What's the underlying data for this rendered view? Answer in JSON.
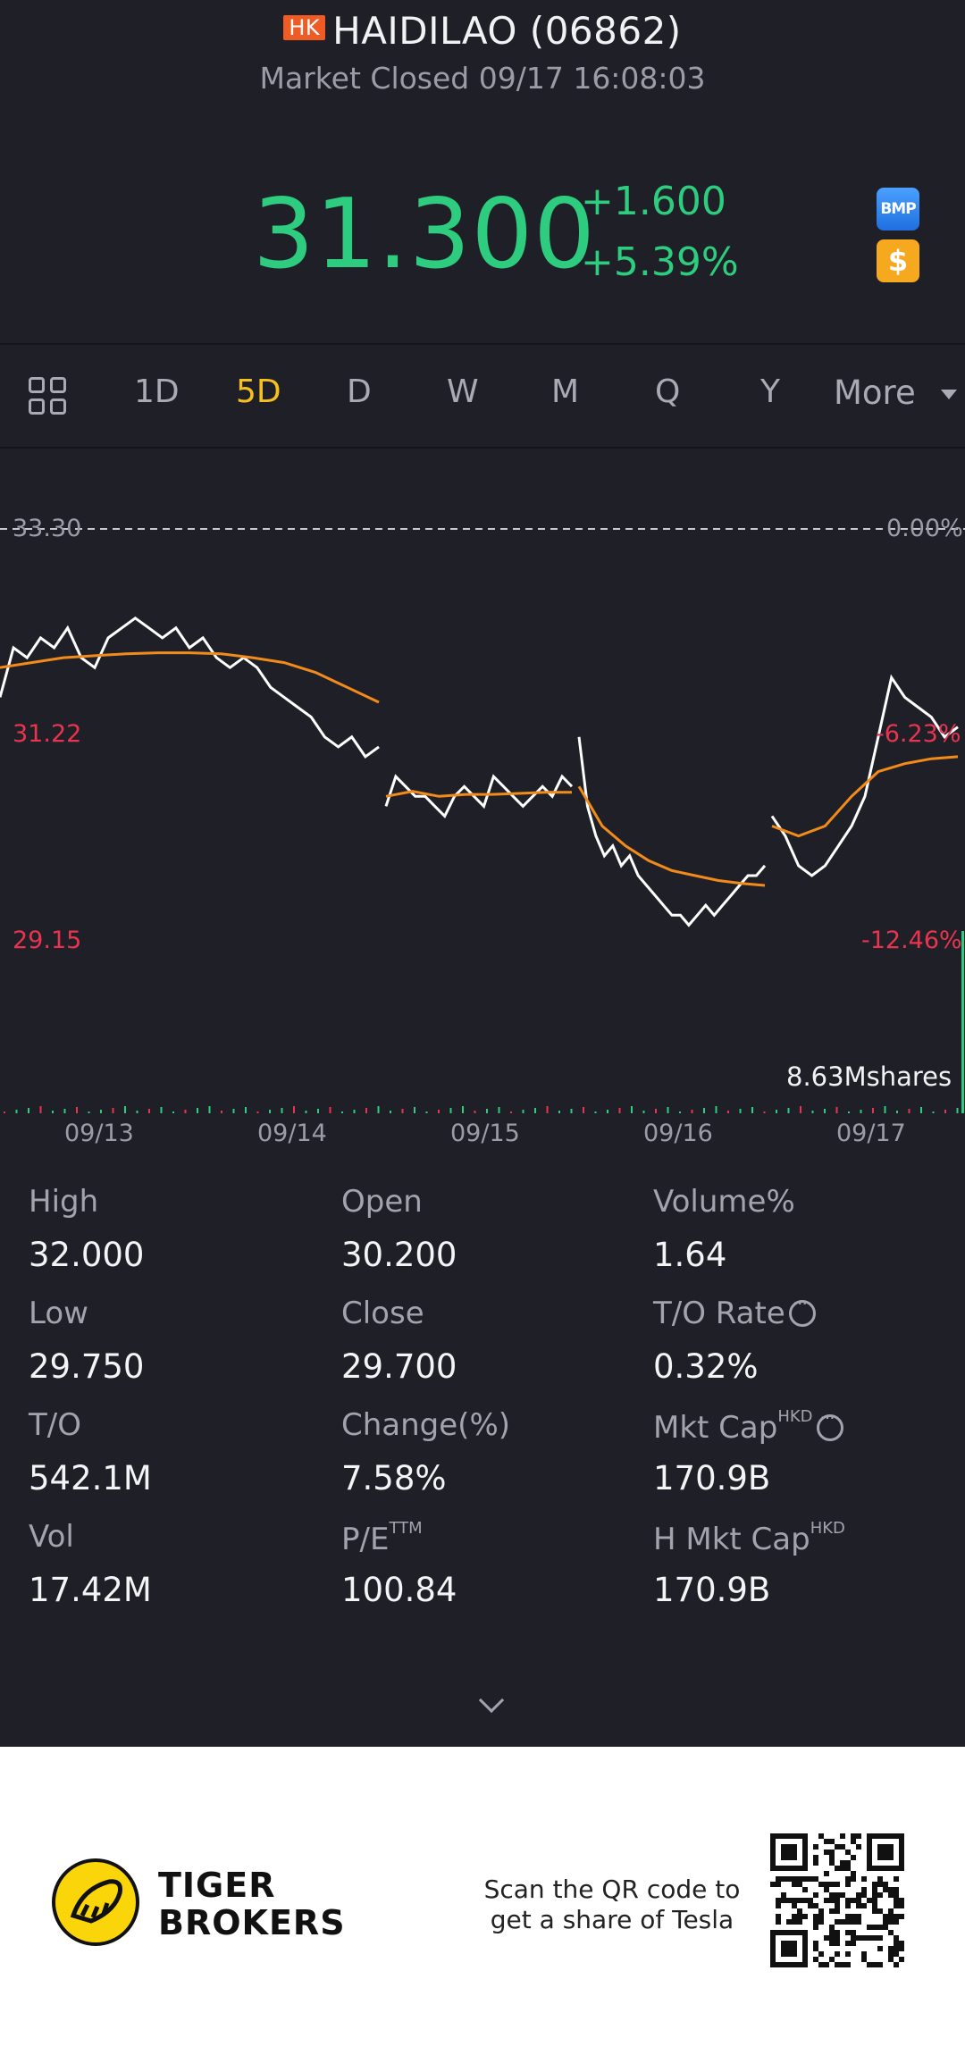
{
  "header": {
    "market_tag": "HK",
    "title": "HAIDILAO (06862)",
    "status": "Market Closed 09/17 16:08:03",
    "price": "31.300",
    "change": "+1.600",
    "change_pct": "+5.39%",
    "badge_bmp": "BMP",
    "badge_dollar": "$",
    "colors": {
      "up": "#2ecc7f",
      "down": "#e8344f",
      "accent": "#f6c01f"
    }
  },
  "tabs": {
    "items": [
      "1D",
      "5D",
      "D",
      "W",
      "M",
      "Q",
      "Y"
    ],
    "active": "5D",
    "more_label": "More",
    "grid_icon": "grid-icon",
    "caret_icon": "caret-down-icon"
  },
  "chart_data": {
    "type": "line",
    "title": "",
    "y_left_labels": [
      "33.30",
      "31.22",
      "29.15"
    ],
    "y_right_labels": [
      "0.00%",
      "-6.23%",
      "-12.46%"
    ],
    "x_labels": [
      "09/13",
      "09/14",
      "09/15",
      "09/16",
      "09/17"
    ],
    "volume_label": "8.63Mshares",
    "ylim": [
      29.15,
      33.3
    ],
    "series": [
      {
        "color": "#ffffff",
        "days": [
          [
            31.6,
            32.1,
            32.0,
            32.2,
            32.1,
            32.3,
            32.0,
            31.9,
            32.2,
            32.3,
            32.4,
            32.3,
            32.2,
            32.3,
            32.1,
            32.2,
            32.0,
            31.9,
            32.0,
            31.9,
            31.7,
            31.6,
            31.5,
            31.4,
            31.2,
            31.1,
            31.2,
            31.0,
            31.1
          ],
          [
            30.5,
            30.8,
            30.7,
            30.6,
            30.6,
            30.5,
            30.4,
            30.6,
            30.7,
            30.6,
            30.5,
            30.8,
            30.7,
            30.6,
            30.5,
            30.6,
            30.7,
            30.6,
            30.8,
            30.7
          ],
          [
            31.2,
            30.5,
            30.2,
            30.0,
            30.1,
            29.9,
            30.0,
            29.8,
            29.7,
            29.6,
            29.5,
            29.4,
            29.4,
            29.3,
            29.4,
            29.5,
            29.4,
            29.5,
            29.6,
            29.7,
            29.8,
            29.8,
            29.9
          ],
          [
            30.4,
            30.2,
            29.9,
            29.8,
            29.9,
            30.1,
            30.3,
            30.6,
            31.2,
            31.8,
            31.6,
            31.5,
            31.4,
            31.2,
            31.3
          ]
        ]
      },
      {
        "color": "#f28b1a",
        "days": [
          [
            31.9,
            31.95,
            32.0,
            32.02,
            32.04,
            32.05,
            32.05,
            32.04,
            32.0,
            31.95,
            31.85,
            31.7,
            31.55
          ],
          [
            30.6,
            30.65,
            30.6,
            30.62,
            30.62,
            30.63,
            30.64,
            30.64
          ],
          [
            30.7,
            30.3,
            30.1,
            29.95,
            29.85,
            29.8,
            29.75,
            29.72,
            29.7
          ],
          [
            30.3,
            30.2,
            30.3,
            30.6,
            30.85,
            30.93,
            30.98,
            31.0
          ]
        ]
      }
    ]
  },
  "stats": [
    {
      "label": "High",
      "value": "32.000"
    },
    {
      "label": "Open",
      "value": "30.200"
    },
    {
      "label": "Volume%",
      "value": "1.64"
    },
    {
      "label": "Low",
      "value": "29.750"
    },
    {
      "label": "Close",
      "value": "29.700"
    },
    {
      "label": "T/O Rate",
      "value": "0.32%"
    },
    {
      "label": "T/O",
      "value": "542.1M"
    },
    {
      "label": "Change(%)",
      "value": "7.58%"
    },
    {
      "label": "Mkt Cap",
      "value": "170.9B"
    },
    {
      "label": "Vol",
      "value": "17.42M"
    },
    {
      "label": "P/E",
      "value": "100.84"
    },
    {
      "label": "H Mkt Cap",
      "value": "170.9B"
    }
  ],
  "stat_sups": {
    "hkd": "HKD",
    "ttm": "TTM"
  },
  "footer": {
    "brand_line1": "TIGER",
    "brand_line2": "BROKERS",
    "scan_line1": "Scan the QR code to",
    "scan_line2": "get a share of Tesla"
  }
}
